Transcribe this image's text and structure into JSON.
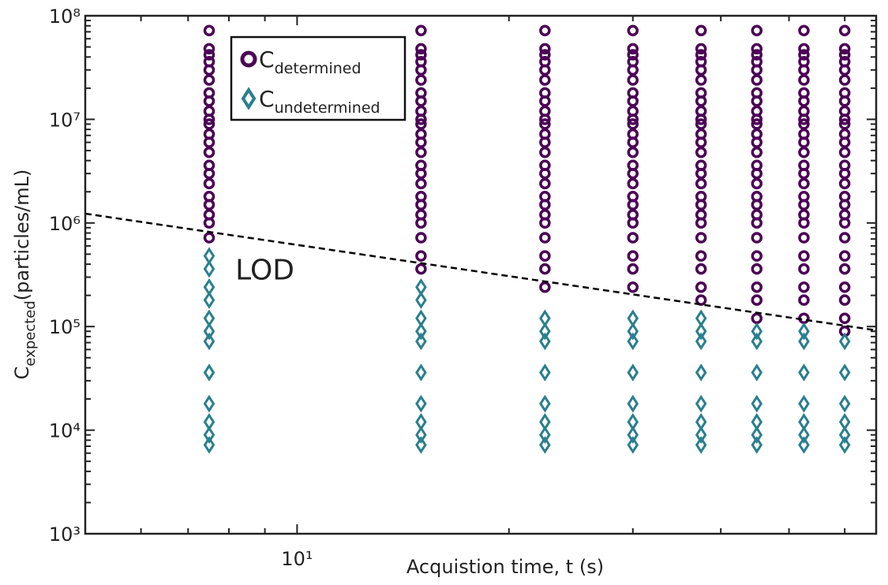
{
  "chart_data": {
    "type": "scatter",
    "xlabel": "Acquistion time, t (s)",
    "ylabel": {
      "text": "C",
      "sub": "expected",
      "rest": "(particles/mL)"
    },
    "xscale": "log",
    "yscale": "log",
    "xlim": [
      5,
      66.5
    ],
    "ylim": [
      1000,
      100000000
    ],
    "xticks": [
      {
        "value": 10,
        "label": "10¹"
      }
    ],
    "xminorticks": [
      6,
      7,
      8,
      9,
      20,
      30,
      40,
      50,
      60
    ],
    "yticks": [
      {
        "value": 1000,
        "label": "10³"
      },
      {
        "value": 10000,
        "label": "10⁴"
      },
      {
        "value": 100000,
        "label": "10⁵"
      },
      {
        "value": 1000000,
        "label": "10⁶"
      },
      {
        "value": 10000000,
        "label": "10⁷"
      },
      {
        "value": 100000000,
        "label": "10⁸"
      }
    ],
    "yminorticks": [
      2000,
      3000,
      4000,
      5000,
      6000,
      7000,
      8000,
      9000,
      20000,
      30000,
      40000,
      50000,
      60000,
      70000,
      80000,
      90000,
      200000,
      300000,
      400000,
      500000,
      600000,
      700000,
      800000,
      900000,
      2000000,
      3000000,
      4000000,
      5000000,
      6000000,
      7000000,
      8000000,
      9000000,
      20000000,
      30000000,
      40000000,
      50000000,
      60000000,
      70000000,
      80000000,
      90000000
    ],
    "series": [
      {
        "name": "C",
        "subscript": "determined",
        "marker": "circle",
        "color": "#4b0055",
        "x": [
          7.5,
          7.5,
          7.5,
          7.5,
          7.5,
          7.5,
          7.5,
          7.5,
          7.5,
          7.5,
          7.5,
          7.5,
          7.5,
          7.5,
          7.5,
          7.5,
          7.5,
          7.5,
          7.5,
          7.5,
          7.5,
          7.5,
          15,
          15,
          15,
          15,
          15,
          15,
          15,
          15,
          15,
          15,
          15,
          15,
          15,
          15,
          15,
          15,
          15,
          15,
          15,
          15,
          15,
          15,
          15,
          15,
          22.5,
          22.5,
          22.5,
          22.5,
          22.5,
          22.5,
          22.5,
          22.5,
          22.5,
          22.5,
          22.5,
          22.5,
          22.5,
          22.5,
          22.5,
          22.5,
          22.5,
          22.5,
          22.5,
          22.5,
          22.5,
          22.5,
          22.5,
          22.5,
          22.5,
          30,
          30,
          30,
          30,
          30,
          30,
          30,
          30,
          30,
          30,
          30,
          30,
          30,
          30,
          30,
          30,
          30,
          30,
          30,
          30,
          30,
          30,
          30,
          30,
          30,
          37.5,
          37.5,
          37.5,
          37.5,
          37.5,
          37.5,
          37.5,
          37.5,
          37.5,
          37.5,
          37.5,
          37.5,
          37.5,
          37.5,
          37.5,
          37.5,
          37.5,
          37.5,
          37.5,
          37.5,
          37.5,
          37.5,
          37.5,
          37.5,
          37.5,
          37.5,
          45,
          45,
          45,
          45,
          45,
          45,
          45,
          45,
          45,
          45,
          45,
          45,
          45,
          45,
          45,
          45,
          45,
          45,
          45,
          45,
          45,
          45,
          45,
          45,
          45,
          45,
          45,
          52.5,
          52.5,
          52.5,
          52.5,
          52.5,
          52.5,
          52.5,
          52.5,
          52.5,
          52.5,
          52.5,
          52.5,
          52.5,
          52.5,
          52.5,
          52.5,
          52.5,
          52.5,
          52.5,
          52.5,
          52.5,
          52.5,
          52.5,
          52.5,
          52.5,
          52.5,
          52.5,
          60,
          60,
          60,
          60,
          60,
          60,
          60,
          60,
          60,
          60,
          60,
          60,
          60,
          60,
          60,
          60,
          60,
          60,
          60,
          60,
          60,
          60,
          60,
          60,
          60,
          60,
          60,
          60
        ],
        "values": [
          72000000,
          48000000,
          42000000,
          36000000,
          30000000,
          24000000,
          18000000,
          15000000,
          12000000,
          10000000,
          9000000,
          7200000,
          6000000,
          4800000,
          3600000,
          3000000,
          2400000,
          1800000,
          1500000,
          1200000,
          1000000,
          720000,
          72000000,
          48000000,
          42000000,
          36000000,
          30000000,
          24000000,
          18000000,
          15000000,
          12000000,
          10000000,
          9000000,
          7200000,
          6000000,
          4800000,
          3600000,
          3000000,
          2400000,
          1800000,
          1500000,
          1200000,
          1000000,
          720000,
          480000,
          360000,
          72000000,
          48000000,
          42000000,
          36000000,
          30000000,
          24000000,
          18000000,
          15000000,
          12000000,
          10000000,
          9000000,
          7200000,
          6000000,
          4800000,
          3600000,
          3000000,
          2400000,
          1800000,
          1500000,
          1200000,
          1000000,
          720000,
          480000,
          360000,
          240000,
          72000000,
          48000000,
          42000000,
          36000000,
          30000000,
          24000000,
          18000000,
          15000000,
          12000000,
          10000000,
          9000000,
          7200000,
          6000000,
          4800000,
          3600000,
          3000000,
          2400000,
          1800000,
          1500000,
          1200000,
          1000000,
          720000,
          480000,
          360000,
          240000,
          72000000,
          48000000,
          42000000,
          36000000,
          30000000,
          24000000,
          18000000,
          15000000,
          12000000,
          10000000,
          9000000,
          7200000,
          6000000,
          4800000,
          3600000,
          3000000,
          2400000,
          1800000,
          1500000,
          1200000,
          1000000,
          720000,
          480000,
          360000,
          240000,
          180000,
          72000000,
          48000000,
          42000000,
          36000000,
          30000000,
          24000000,
          18000000,
          15000000,
          12000000,
          10000000,
          9000000,
          7200000,
          6000000,
          4800000,
          3600000,
          3000000,
          2400000,
          1800000,
          1500000,
          1200000,
          1000000,
          720000,
          480000,
          360000,
          240000,
          180000,
          120000,
          72000000,
          48000000,
          42000000,
          36000000,
          30000000,
          24000000,
          18000000,
          15000000,
          12000000,
          10000000,
          9000000,
          7200000,
          6000000,
          4800000,
          3600000,
          3000000,
          2400000,
          1800000,
          1500000,
          1200000,
          1000000,
          720000,
          480000,
          360000,
          240000,
          180000,
          120000,
          72000000,
          48000000,
          42000000,
          36000000,
          30000000,
          24000000,
          18000000,
          15000000,
          12000000,
          10000000,
          9000000,
          7200000,
          6000000,
          4800000,
          3600000,
          3000000,
          2400000,
          1800000,
          1500000,
          1200000,
          1000000,
          720000,
          480000,
          360000,
          240000,
          180000,
          120000,
          90000
        ]
      },
      {
        "name": "C",
        "subscript": "undetermined",
        "marker": "diamond",
        "color": "#2a7f8e",
        "x": [
          7.5,
          7.5,
          7.5,
          7.5,
          7.5,
          7.5,
          7.5,
          7.5,
          7.5,
          7.5,
          7.5,
          7.5,
          15,
          15,
          15,
          15,
          15,
          15,
          15,
          15,
          15,
          15,
          22.5,
          22.5,
          22.5,
          22.5,
          22.5,
          22.5,
          22.5,
          22.5,
          30,
          30,
          30,
          30,
          30,
          30,
          30,
          30,
          37.5,
          37.5,
          37.5,
          37.5,
          37.5,
          37.5,
          37.5,
          37.5,
          45,
          45,
          45,
          45,
          45,
          45,
          45,
          52.5,
          52.5,
          52.5,
          52.5,
          52.5,
          52.5,
          52.5,
          60,
          60,
          60,
          60,
          60,
          60
        ],
        "values": [
          480000,
          360000,
          240000,
          180000,
          120000,
          90000,
          72000,
          36000,
          18000,
          12000,
          9000,
          7200,
          240000,
          180000,
          120000,
          90000,
          72000,
          36000,
          18000,
          12000,
          9000,
          7200,
          120000,
          90000,
          72000,
          36000,
          18000,
          12000,
          9000,
          7200,
          120000,
          90000,
          72000,
          36000,
          18000,
          12000,
          9000,
          7200,
          120000,
          90000,
          72000,
          36000,
          18000,
          12000,
          9000,
          7200,
          90000,
          72000,
          36000,
          18000,
          12000,
          9000,
          7200,
          90000,
          72000,
          36000,
          18000,
          12000,
          9000,
          7200,
          72000,
          36000,
          18000,
          12000,
          9000,
          7200
        ]
      }
    ],
    "lod_line": {
      "x": [
        5,
        66.5
      ],
      "values": [
        1230000,
        92000
      ],
      "color": "#000000",
      "style": "dashed"
    },
    "annotation": {
      "text": "LOD",
      "x": 9,
      "y": 350000
    }
  }
}
